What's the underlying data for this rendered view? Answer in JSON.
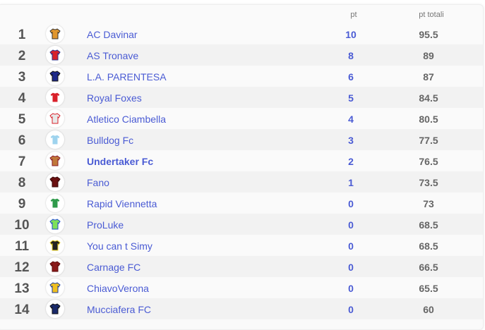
{
  "headers": {
    "pt": "pt",
    "total": "pt totali"
  },
  "rows": [
    {
      "rank": "1",
      "team": "AC Davinar",
      "pt": "10",
      "total": "95.5",
      "color": "#e0962e",
      "trim": "#333"
    },
    {
      "rank": "2",
      "team": "AS Tronave",
      "pt": "8",
      "total": "89",
      "color": "#d9202a",
      "trim": "#2a2f8a"
    },
    {
      "rank": "3",
      "team": "L.A. PARENTESA",
      "pt": "6",
      "total": "87",
      "color": "#1e2a8a",
      "trim": "#111"
    },
    {
      "rank": "4",
      "team": "Royal Foxes",
      "pt": "5",
      "total": "84.5",
      "color": "#d9202a",
      "trim": "#fff"
    },
    {
      "rank": "5",
      "team": "Atletico Ciambella",
      "pt": "4",
      "total": "80.5",
      "color": "#e8e8e8",
      "trim": "#d9202a"
    },
    {
      "rank": "6",
      "team": "Bulldog Fc",
      "pt": "3",
      "total": "77.5",
      "color": "#9ed3ee",
      "trim": "#fff"
    },
    {
      "rank": "7",
      "team": "Undertaker Fc",
      "pt": "2",
      "total": "76.5",
      "color": "#c0783a",
      "trim": "#8a1a2a",
      "highlight": true
    },
    {
      "rank": "8",
      "team": "Fano",
      "pt": "1",
      "total": "73.5",
      "color": "#6a1010",
      "trim": "#3a0808"
    },
    {
      "rank": "9",
      "team": "Rapid Viennetta",
      "pt": "0",
      "total": "73",
      "color": "#2e9a4a",
      "trim": "#fff"
    },
    {
      "rank": "10",
      "team": "ProLuke",
      "pt": "0",
      "total": "68.5",
      "color": "#7ee05a",
      "trim": "#1a4acc"
    },
    {
      "rank": "11",
      "team": "You can t Simy",
      "pt": "0",
      "total": "68.5",
      "color": "#222",
      "trim": "#e8d020"
    },
    {
      "rank": "12",
      "team": "Carnage FC",
      "pt": "0",
      "total": "66.5",
      "color": "#8a1a1a",
      "trim": "#5a0a0a"
    },
    {
      "rank": "13",
      "team": "ChiavoVerona",
      "pt": "0",
      "total": "65.5",
      "color": "#f0c020",
      "trim": "#1a3a9a"
    },
    {
      "rank": "14",
      "team": "Mucciafera FC",
      "pt": "0",
      "total": "60",
      "color": "#1a2a6a",
      "trim": "#111"
    }
  ]
}
